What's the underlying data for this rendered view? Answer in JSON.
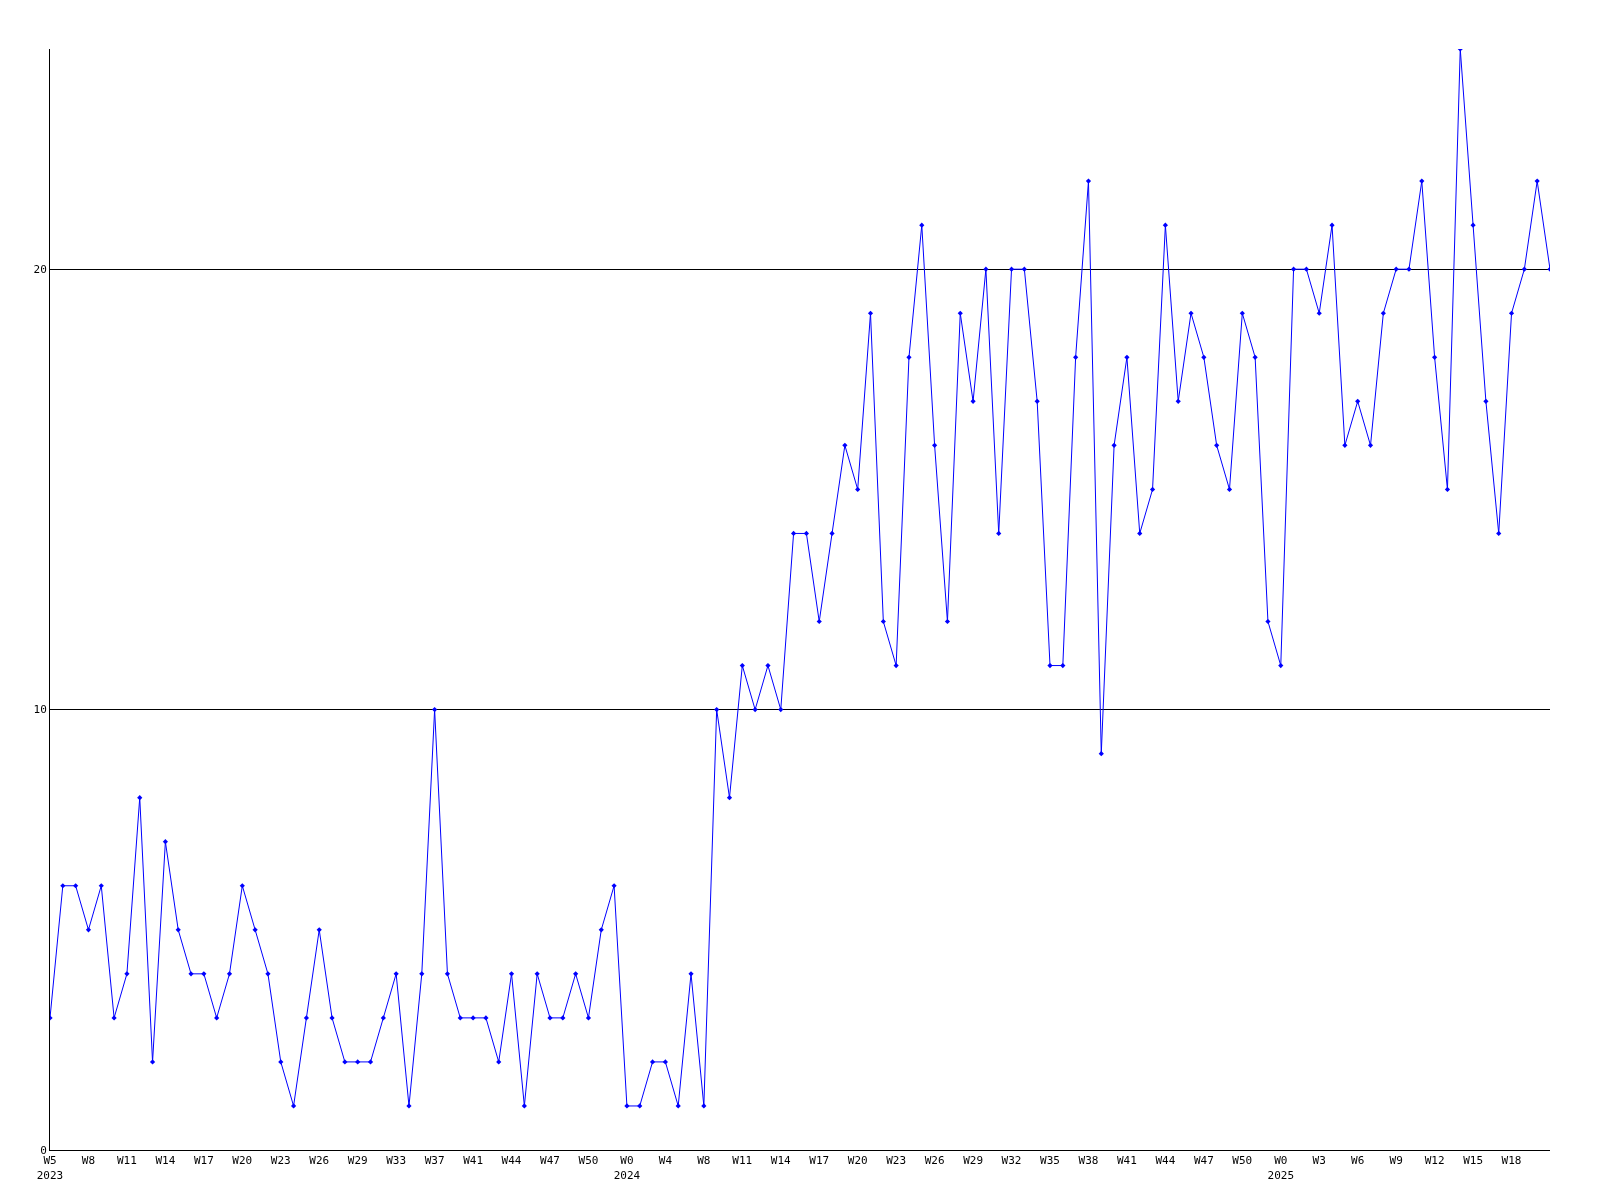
{
  "chart_data": {
    "type": "line",
    "categories": [
      "W5\n2023",
      null,
      null,
      "W8",
      null,
      null,
      "W11",
      null,
      null,
      "W14",
      null,
      null,
      "W17",
      null,
      null,
      "W20",
      null,
      null,
      "W23",
      null,
      null,
      "W26",
      null,
      null,
      "W29",
      null,
      null,
      "W33",
      null,
      null,
      "W37",
      null,
      null,
      "W41",
      null,
      null,
      "W44",
      null,
      null,
      "W47",
      null,
      null,
      "W50",
      null,
      null,
      "W0\n2024",
      null,
      null,
      "W4",
      null,
      null,
      "W8",
      null,
      null,
      "W11",
      null,
      null,
      "W14",
      null,
      null,
      "W17",
      null,
      null,
      "W20",
      null,
      null,
      "W23",
      null,
      null,
      "W26",
      null,
      null,
      "W29",
      null,
      null,
      "W32",
      null,
      null,
      "W35",
      null,
      null,
      "W38",
      null,
      null,
      "W41",
      null,
      null,
      "W44",
      null,
      null,
      "W47",
      null,
      null,
      "W50",
      null,
      null,
      "W0\n2025",
      null,
      null,
      "W3",
      null,
      null,
      "W6",
      null,
      null,
      "W9",
      null,
      null,
      "W12",
      null,
      null,
      "W15",
      null,
      null,
      "W18",
      null,
      null,
      null
    ],
    "series": [
      {
        "color": "#0000ff",
        "values": [
          3,
          6,
          6,
          5,
          6,
          3,
          4,
          8,
          2,
          7,
          5,
          4,
          4,
          3,
          4,
          6,
          5,
          4,
          2,
          1,
          3,
          5,
          3,
          2,
          2,
          2,
          3,
          4,
          1,
          4,
          10,
          4,
          3,
          3,
          3,
          2,
          4,
          1,
          4,
          3,
          3,
          4,
          3,
          5,
          6,
          1,
          1,
          2,
          2,
          1,
          4,
          1,
          10,
          8,
          11,
          10,
          11,
          10,
          14,
          14,
          12,
          14,
          16,
          15,
          19,
          12,
          11,
          18,
          21,
          16,
          12,
          19,
          17,
          20,
          14,
          20,
          20,
          17,
          11,
          11,
          18,
          22,
          9,
          16,
          18,
          14,
          15,
          21,
          17,
          19,
          18,
          16,
          15,
          19,
          18,
          12,
          11,
          20,
          20,
          19,
          21,
          16,
          17,
          16,
          19,
          20,
          20,
          22,
          18,
          15,
          25,
          21,
          17,
          14,
          19,
          20,
          22,
          20
        ]
      }
    ],
    "ylim": [
      0,
      25
    ],
    "yticks": [
      0,
      10,
      20
    ],
    "grid": "y",
    "marker": "diamond",
    "line_style": "solid",
    "legend": false
  }
}
